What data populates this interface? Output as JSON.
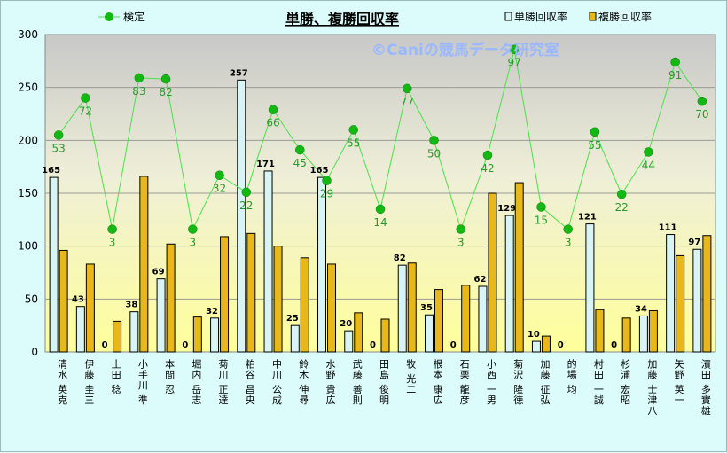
{
  "chart_data": {
    "type": "bar",
    "title": "単勝、複勝回収率",
    "watermark": "©Caniの競馬データ研究室",
    "ylim": [
      0,
      300
    ],
    "yticks": [
      0,
      50,
      100,
      150,
      200,
      250,
      300
    ],
    "grid": true,
    "legend": {
      "placement": "top"
    },
    "categories": [
      "清水 英克",
      "伊藤 圭三",
      "土田 稔",
      "小手川 準",
      "本間 忍",
      "堀内 岳志",
      "菊川 正達",
      "粕谷 昌央",
      "中川 公成",
      "鈴木 伸尋",
      "水野 貴広",
      "武藤 善則",
      "田島 俊明",
      "牧 光二",
      "根本 康広",
      "石栗 龍彦",
      "小西 一男",
      "菊沢 隆徳",
      "加藤 征弘",
      "的場 均",
      "村田 一誠",
      "杉浦 宏昭",
      "加藤 士津八",
      "矢野 英一",
      "濱田 多實雄"
    ],
    "series": [
      {
        "name": "単勝回収率",
        "type": "bar",
        "color": "#d8f4f4",
        "values": [
          165,
          43,
          0,
          38,
          69,
          0,
          32,
          257,
          171,
          25,
          165,
          20,
          0,
          82,
          35,
          0,
          62,
          129,
          10,
          0,
          121,
          0,
          34,
          111,
          97
        ]
      },
      {
        "name": "複勝回収率",
        "type": "bar",
        "color": "#e8b81a",
        "values": [
          96,
          83,
          29,
          166,
          102,
          33,
          109,
          112,
          100,
          89,
          83,
          37,
          31,
          84,
          59,
          63,
          150,
          160,
          15,
          0,
          40,
          32,
          39,
          91,
          110
        ]
      },
      {
        "name": "検定",
        "type": "line",
        "color": "#19c419",
        "values": [
          205,
          240,
          116,
          259,
          258,
          116,
          167,
          151,
          229,
          191,
          162,
          210,
          135,
          249,
          200,
          116,
          186,
          286,
          137,
          116,
          208,
          149,
          189,
          274,
          237
        ],
        "labels": [
          53,
          72,
          3,
          83,
          82,
          3,
          32,
          22,
          66,
          45,
          29,
          55,
          14,
          77,
          50,
          3,
          42,
          97,
          15,
          3,
          55,
          22,
          44,
          91,
          70
        ]
      }
    ]
  }
}
